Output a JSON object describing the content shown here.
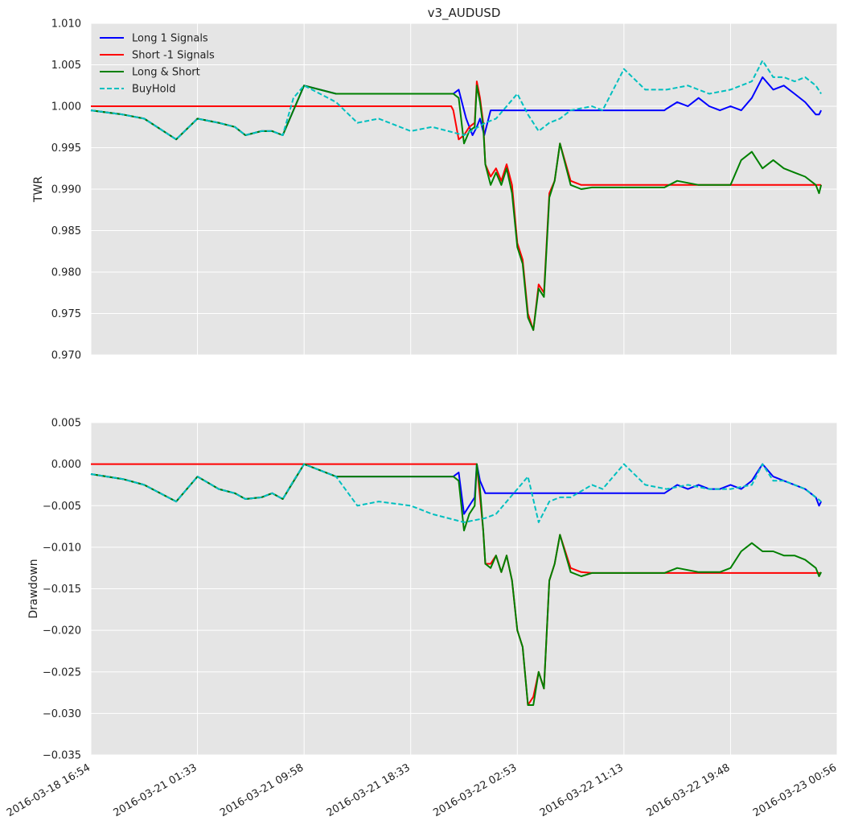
{
  "title": "v3_AUDUSD",
  "x_tick_labels": [
    "2016-03-18 16:54",
    "2016-03-21 01:33",
    "2016-03-21 09:58",
    "2016-03-21 18:33",
    "2016-03-22 02:53",
    "2016-03-22 11:13",
    "2016-03-22 19:48",
    "2016-03-23 00:56"
  ],
  "chart_data": [
    {
      "type": "line",
      "panel": "top",
      "title": "v3_AUDUSD",
      "ylabel": "TWR",
      "ylim": [
        0.97,
        1.01
      ],
      "yticks": [
        "1.010",
        "1.005",
        "1.000",
        "0.995",
        "0.990",
        "0.985",
        "0.980",
        "0.975",
        "0.970"
      ],
      "x_range_note": "7 equal intervals between first and last tick label; x values below expressed in tick-interval units (0..7)",
      "legend": [
        "Long 1 Signals",
        "Short -1 Signals",
        "Long & Short",
        "BuyHold"
      ],
      "series": [
        {
          "name": "Long 1 Signals",
          "color": "#0000ff",
          "style": "solid",
          "x": [
            0,
            0.3,
            0.5,
            0.8,
            1.0,
            1.2,
            1.35,
            1.45,
            1.6,
            1.7,
            1.8,
            2.0,
            2.3,
            2.8,
            3.05,
            3.4,
            3.45,
            3.5,
            3.52,
            3.58,
            3.62,
            3.65,
            3.67,
            3.69,
            3.75,
            3.8,
            3.9,
            4.0,
            4.2,
            4.5,
            4.8,
            5.0,
            5.2,
            5.38,
            5.4,
            5.5,
            5.6,
            5.7,
            5.8,
            5.9,
            6.0,
            6.1,
            6.2,
            6.3,
            6.4,
            6.5,
            6.6,
            6.7,
            6.8,
            6.83,
            6.85
          ],
          "y": [
            0.9995,
            0.999,
            0.9985,
            0.996,
            0.9985,
            0.998,
            0.9975,
            0.9965,
            0.997,
            0.997,
            0.9965,
            1.0025,
            1.0015,
            1.0015,
            1.0015,
            1.0015,
            1.002,
            0.9995,
            0.9985,
            0.9965,
            0.9975,
            0.9985,
            0.9975,
            0.9965,
            0.9995,
            0.9995,
            0.9995,
            0.9995,
            0.9995,
            0.9995,
            0.9995,
            0.9995,
            0.9995,
            0.9995,
            0.9997,
            1.0005,
            1.0,
            1.001,
            1.0,
            0.9995,
            1.0,
            0.9995,
            1.001,
            1.0035,
            1.002,
            1.0025,
            1.0015,
            1.0005,
            0.999,
            0.999,
            0.9995
          ]
        },
        {
          "name": "Short -1 Signals",
          "color": "#ff0000",
          "style": "solid",
          "x": [
            0,
            3.38,
            3.4,
            3.45,
            3.5,
            3.55,
            3.6,
            3.62,
            3.65,
            3.68,
            3.7,
            3.75,
            3.8,
            3.85,
            3.9,
            3.95,
            4.0,
            4.05,
            4.1,
            4.15,
            4.2,
            4.25,
            4.3,
            4.35,
            4.4,
            4.5,
            4.6,
            4.7,
            4.75,
            6.85
          ],
          "y": [
            1.0,
            1.0,
            0.9995,
            0.996,
            0.9965,
            0.9975,
            0.998,
            1.003,
            1.001,
            0.998,
            0.993,
            0.9915,
            0.9925,
            0.991,
            0.993,
            0.9905,
            0.9835,
            0.9815,
            0.975,
            0.973,
            0.9785,
            0.9775,
            0.9895,
            0.991,
            0.9955,
            0.991,
            0.9905,
            0.9905,
            0.9905,
            0.9905
          ]
        },
        {
          "name": "Long & Short",
          "color": "#008000",
          "style": "solid",
          "x": [
            0,
            0.3,
            0.5,
            0.8,
            1.0,
            1.2,
            1.35,
            1.45,
            1.6,
            1.7,
            1.8,
            2.0,
            2.3,
            2.8,
            3.05,
            3.4,
            3.45,
            3.5,
            3.55,
            3.6,
            3.62,
            3.65,
            3.68,
            3.7,
            3.75,
            3.8,
            3.85,
            3.9,
            3.95,
            4.0,
            4.05,
            4.1,
            4.15,
            4.2,
            4.25,
            4.3,
            4.35,
            4.4,
            4.5,
            4.6,
            4.7,
            4.75,
            5.0,
            5.38,
            5.5,
            5.7,
            5.9,
            6.0,
            6.1,
            6.2,
            6.3,
            6.4,
            6.5,
            6.6,
            6.7,
            6.8,
            6.83,
            6.85
          ],
          "y": [
            0.9995,
            0.999,
            0.9985,
            0.996,
            0.9985,
            0.998,
            0.9975,
            0.9965,
            0.997,
            0.997,
            0.9965,
            1.0025,
            1.0015,
            1.0015,
            1.0015,
            1.0015,
            1.001,
            0.9955,
            0.997,
            0.9975,
            1.0025,
            1.0005,
            0.9975,
            0.993,
            0.9905,
            0.992,
            0.9905,
            0.9925,
            0.9895,
            0.983,
            0.981,
            0.9745,
            0.973,
            0.978,
            0.977,
            0.989,
            0.991,
            0.9955,
            0.9905,
            0.99,
            0.9902,
            0.9902,
            0.9902,
            0.9902,
            0.991,
            0.9905,
            0.9905,
            0.9905,
            0.9935,
            0.9945,
            0.9925,
            0.9935,
            0.9925,
            0.992,
            0.9915,
            0.9905,
            0.9895,
            0.9905
          ]
        },
        {
          "name": "BuyHold",
          "color": "#00bfbf",
          "style": "dashed",
          "x": [
            0,
            0.3,
            0.5,
            0.8,
            1.0,
            1.2,
            1.35,
            1.45,
            1.6,
            1.7,
            1.8,
            1.9,
            2.0,
            2.3,
            2.5,
            2.7,
            3.0,
            3.2,
            3.5,
            3.7,
            3.8,
            4.0,
            4.1,
            4.2,
            4.3,
            4.4,
            4.5,
            4.7,
            4.8,
            4.9,
            5.0,
            5.2,
            5.4,
            5.6,
            5.8,
            6.0,
            6.2,
            6.3,
            6.4,
            6.5,
            6.6,
            6.7,
            6.8,
            6.85
          ],
          "y": [
            0.9995,
            0.999,
            0.9985,
            0.996,
            0.9985,
            0.998,
            0.9975,
            0.9965,
            0.997,
            0.997,
            0.9965,
            1.001,
            1.0025,
            1.0005,
            0.998,
            0.9985,
            0.997,
            0.9975,
            0.9965,
            0.998,
            0.9985,
            1.0015,
            0.999,
            0.997,
            0.998,
            0.9985,
            0.9995,
            1.0,
            0.9995,
            1.002,
            1.0045,
            1.002,
            1.002,
            1.0025,
            1.0015,
            1.002,
            1.003,
            1.0055,
            1.0035,
            1.0035,
            1.003,
            1.0035,
            1.0025,
            1.0015
          ]
        }
      ]
    },
    {
      "type": "line",
      "panel": "bottom",
      "ylabel": "Drawdown",
      "ylim": [
        -0.035,
        0.005
      ],
      "yticks": [
        "0.005",
        "0.000",
        "−0.005",
        "−0.010",
        "−0.015",
        "−0.020",
        "−0.025",
        "−0.030",
        "−0.035"
      ],
      "series": [
        {
          "name": "Long 1 Signals",
          "color": "#0000ff",
          "style": "solid",
          "x": [
            0,
            0.3,
            0.5,
            0.8,
            1.0,
            1.2,
            1.35,
            1.45,
            1.6,
            1.7,
            1.8,
            2.0,
            2.3,
            2.8,
            3.05,
            3.4,
            3.45,
            3.5,
            3.55,
            3.6,
            3.62,
            3.65,
            3.7,
            3.75,
            3.8,
            4.0,
            4.5,
            5.0,
            5.38,
            5.5,
            5.6,
            5.7,
            5.8,
            5.9,
            6.0,
            6.1,
            6.2,
            6.3,
            6.4,
            6.5,
            6.6,
            6.7,
            6.8,
            6.83,
            6.85
          ],
          "y": [
            -0.0012,
            -0.0018,
            -0.0025,
            -0.0045,
            -0.0015,
            -0.003,
            -0.0035,
            -0.0042,
            -0.004,
            -0.0035,
            -0.0042,
            0.0,
            -0.0015,
            -0.0015,
            -0.0015,
            -0.0015,
            -0.001,
            -0.006,
            -0.005,
            -0.004,
            0.0,
            -0.002,
            -0.0035,
            -0.0035,
            -0.0035,
            -0.0035,
            -0.0035,
            -0.0035,
            -0.0035,
            -0.0025,
            -0.003,
            -0.0025,
            -0.003,
            -0.003,
            -0.0025,
            -0.003,
            -0.002,
            0.0,
            -0.0015,
            -0.002,
            -0.0025,
            -0.003,
            -0.004,
            -0.005,
            -0.0045
          ]
        },
        {
          "name": "Short -1 Signals",
          "color": "#ff0000",
          "style": "solid",
          "x": [
            0,
            3.38,
            3.4,
            3.45,
            3.5,
            3.55,
            3.6,
            3.62,
            3.65,
            3.68,
            3.7,
            3.75,
            3.8,
            3.85,
            3.9,
            3.95,
            4.0,
            4.05,
            4.1,
            4.15,
            4.2,
            4.25,
            4.3,
            4.35,
            4.4,
            4.5,
            4.6,
            4.7,
            4.75,
            6.85
          ],
          "y": [
            0.0,
            0.0,
            0.0,
            0.0,
            0.0,
            0.0,
            0.0,
            0.0,
            -0.004,
            -0.008,
            -0.012,
            -0.012,
            -0.011,
            -0.013,
            -0.011,
            -0.014,
            -0.02,
            -0.022,
            -0.029,
            -0.028,
            -0.025,
            -0.027,
            -0.014,
            -0.012,
            -0.0085,
            -0.0125,
            -0.013,
            -0.0131,
            -0.0131,
            -0.0131
          ]
        },
        {
          "name": "Long & Short",
          "color": "#008000",
          "style": "solid",
          "x": [
            0,
            0.3,
            0.5,
            0.8,
            1.0,
            1.2,
            1.35,
            1.45,
            1.6,
            1.7,
            1.8,
            2.0,
            2.3,
            2.8,
            3.05,
            3.4,
            3.45,
            3.5,
            3.55,
            3.6,
            3.62,
            3.65,
            3.68,
            3.7,
            3.75,
            3.8,
            3.85,
            3.9,
            3.95,
            4.0,
            4.05,
            4.1,
            4.15,
            4.2,
            4.25,
            4.3,
            4.35,
            4.4,
            4.5,
            4.6,
            4.7,
            4.75,
            5.0,
            5.38,
            5.5,
            5.7,
            5.9,
            6.0,
            6.1,
            6.2,
            6.3,
            6.4,
            6.5,
            6.6,
            6.7,
            6.8,
            6.83,
            6.85
          ],
          "y": [
            -0.0012,
            -0.0018,
            -0.0025,
            -0.0045,
            -0.0015,
            -0.003,
            -0.0035,
            -0.0042,
            -0.004,
            -0.0035,
            -0.0042,
            0.0,
            -0.0015,
            -0.0015,
            -0.0015,
            -0.0015,
            -0.002,
            -0.008,
            -0.006,
            -0.005,
            0.0,
            -0.003,
            -0.008,
            -0.012,
            -0.0125,
            -0.011,
            -0.013,
            -0.011,
            -0.014,
            -0.02,
            -0.022,
            -0.029,
            -0.029,
            -0.025,
            -0.027,
            -0.014,
            -0.012,
            -0.0085,
            -0.013,
            -0.0135,
            -0.0131,
            -0.0131,
            -0.0131,
            -0.0131,
            -0.0125,
            -0.013,
            -0.013,
            -0.0125,
            -0.0105,
            -0.0095,
            -0.0105,
            -0.0105,
            -0.011,
            -0.011,
            -0.0115,
            -0.0125,
            -0.0135,
            -0.013
          ]
        },
        {
          "name": "BuyHold",
          "color": "#00bfbf",
          "style": "dashed",
          "x": [
            0,
            0.3,
            0.5,
            0.8,
            1.0,
            1.2,
            1.35,
            1.45,
            1.6,
            1.7,
            1.8,
            1.9,
            2.0,
            2.3,
            2.5,
            2.7,
            3.0,
            3.2,
            3.5,
            3.7,
            3.8,
            4.0,
            4.1,
            4.2,
            4.3,
            4.4,
            4.5,
            4.7,
            4.8,
            4.9,
            5.0,
            5.2,
            5.4,
            5.6,
            5.8,
            6.0,
            6.2,
            6.3,
            6.4,
            6.5,
            6.6,
            6.7,
            6.8,
            6.85
          ],
          "y": [
            -0.0012,
            -0.0018,
            -0.0025,
            -0.0045,
            -0.0015,
            -0.003,
            -0.0035,
            -0.0042,
            -0.004,
            -0.0035,
            -0.0042,
            -0.002,
            0.0,
            -0.0015,
            -0.005,
            -0.0045,
            -0.005,
            -0.006,
            -0.007,
            -0.0065,
            -0.006,
            -0.003,
            -0.0015,
            -0.007,
            -0.0045,
            -0.004,
            -0.004,
            -0.0025,
            -0.003,
            -0.0015,
            0.0,
            -0.0025,
            -0.003,
            -0.0025,
            -0.003,
            -0.003,
            -0.0025,
            0.0,
            -0.002,
            -0.002,
            -0.0025,
            -0.003,
            -0.004,
            -0.0045
          ]
        }
      ]
    }
  ]
}
